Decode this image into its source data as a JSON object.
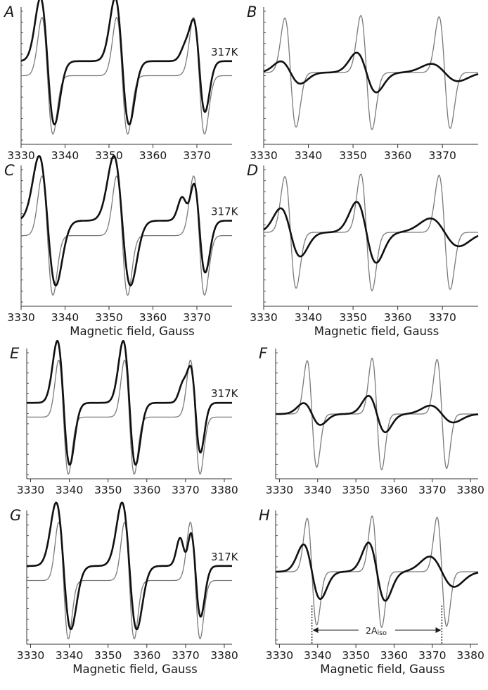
{
  "figure": {
    "temperature_label": "317K",
    "xlabel": "Magnetic field, Gauss",
    "annotation": "2A",
    "annotation_subscript": "iso",
    "thick_color": "#111111",
    "thin_color": "#7a7a7a"
  },
  "chart_data": [
    {
      "panel": "A",
      "type": "line",
      "xlim": [
        3330,
        3378
      ],
      "xticks": [
        3330,
        3340,
        3350,
        3360,
        3370
      ],
      "xlabel": "",
      "series_temperature": "317K",
      "peaks": [
        3336,
        3353,
        3370.5
      ],
      "linewidths_thick": [
        1.6,
        1.6,
        1.35
      ],
      "amps_thick": [
        1,
        1,
        0.8
      ],
      "amps_thin": [
        0.92,
        0.92,
        0.92
      ],
      "shoulder_thick": {
        "field": 3368,
        "amp": 0.14
      },
      "baseline_thick": 0.18,
      "baseline_thin": 0.05,
      "legend": "none"
    },
    {
      "panel": "B",
      "type": "line",
      "xlim": [
        3330,
        3378
      ],
      "xticks": [
        3330,
        3340,
        3350,
        3360,
        3370
      ],
      "xlabel": "",
      "peaks": [
        3336,
        3353,
        3370.5
      ],
      "linewidths_thick": [
        2.2,
        2.2,
        3.0
      ],
      "amps_thick": [
        0.18,
        0.32,
        0.14
      ],
      "amps_thin": [
        0.88,
        0.92,
        0.9
      ],
      "baseline_thick": 0.0,
      "baseline_thin": 0.0,
      "legend": "none"
    },
    {
      "panel": "C",
      "type": "line",
      "xlim": [
        3330,
        3378
      ],
      "xticks": [
        3330,
        3340,
        3350,
        3360,
        3370
      ],
      "xlabel": "Magnetic field, Gauss",
      "series_temperature": "317K",
      "peaks": [
        3336,
        3353,
        3370.5
      ],
      "linewidths_thick": [
        1.9,
        1.9,
        1.4
      ],
      "amps_thick": [
        1,
        1,
        0.8
      ],
      "amps_thin": [
        0.92,
        0.92,
        0.92
      ],
      "shoulder_thick": {
        "field": 3367.5,
        "amp": 0.3
      },
      "baseline_thick": 0.18,
      "baseline_thin": 0.05,
      "legend": "none"
    },
    {
      "panel": "D",
      "type": "line",
      "xlim": [
        3330,
        3378
      ],
      "xticks": [
        3330,
        3340,
        3350,
        3360,
        3370
      ],
      "xlabel": "Magnetic field, Gauss",
      "peaks": [
        3336,
        3353,
        3370.5
      ],
      "linewidths_thick": [
        2.2,
        2.2,
        3.2
      ],
      "amps_thick": [
        0.38,
        0.48,
        0.22
      ],
      "amps_thin": [
        0.88,
        0.92,
        0.9
      ],
      "baseline_thick": 0.0,
      "baseline_thin": 0.0,
      "legend": "none"
    },
    {
      "panel": "E",
      "type": "line",
      "xlim": [
        3329,
        3382
      ],
      "xticks": [
        3330,
        3340,
        3350,
        3360,
        3370,
        3380
      ],
      "xlabel": "",
      "series_temperature": "317K",
      "peaks": [
        3338.5,
        3355.5,
        3372.5
      ],
      "linewidths_thick": [
        1.6,
        1.6,
        1.35
      ],
      "amps_thick": [
        1,
        1,
        0.8
      ],
      "amps_thin": [
        0.92,
        0.92,
        0.92
      ],
      "shoulder_thick": {
        "field": 3370,
        "amp": 0.2
      },
      "baseline_thick": 0.18,
      "baseline_thin": 0.05,
      "legend": "none"
    },
    {
      "panel": "F",
      "type": "line",
      "xlim": [
        3329,
        3382
      ],
      "xticks": [
        3330,
        3340,
        3350,
        3360,
        3370,
        3380
      ],
      "xlabel": "",
      "peaks": [
        3338.5,
        3355.5,
        3372.5
      ],
      "linewidths_thick": [
        2.2,
        2.2,
        3.0
      ],
      "amps_thick": [
        0.18,
        0.3,
        0.14
      ],
      "amps_thin": [
        0.88,
        0.92,
        0.9
      ],
      "baseline_thick": 0.0,
      "baseline_thin": 0.0,
      "legend": "none"
    },
    {
      "panel": "G",
      "type": "line",
      "xlim": [
        3329,
        3382
      ],
      "xticks": [
        3330,
        3340,
        3350,
        3360,
        3370,
        3380
      ],
      "xlabel": "Magnetic field, Gauss",
      "series_temperature": "317K",
      "peaks": [
        3338.5,
        3355.5,
        3372.5
      ],
      "linewidths_thick": [
        1.9,
        1.9,
        1.4
      ],
      "amps_thick": [
        1,
        1,
        0.8
      ],
      "amps_thin": [
        0.92,
        0.92,
        0.92
      ],
      "shoulder_thick": {
        "field": 3369.5,
        "amp": 0.38
      },
      "baseline_thick": 0.18,
      "baseline_thin": 0.05,
      "legend": "none"
    },
    {
      "panel": "H",
      "type": "line",
      "xlim": [
        3329,
        3382
      ],
      "xticks": [
        3330,
        3340,
        3350,
        3360,
        3370,
        3380
      ],
      "xlabel": "Magnetic field, Gauss",
      "peaks": [
        3338.5,
        3355.5,
        3372.5
      ],
      "linewidths_thick": [
        2.2,
        2.2,
        3.2
      ],
      "amps_thick": [
        0.45,
        0.48,
        0.25
      ],
      "amps_thin": [
        0.88,
        0.92,
        0.9
      ],
      "baseline_thick": 0.0,
      "baseline_thin": 0.0,
      "legend": "none",
      "annotation": {
        "text": "2Aiso",
        "from": 3338.5,
        "to": 3372.5
      }
    }
  ]
}
